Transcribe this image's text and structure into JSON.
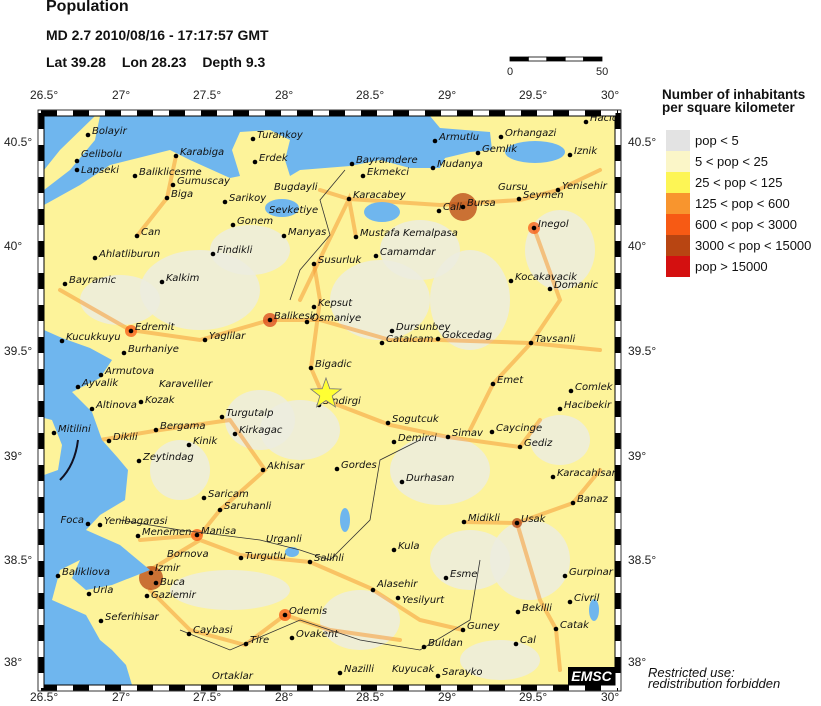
{
  "header": {
    "title": "Population",
    "event": "MD 2.7  2010/08/16 - 17:17:57 GMT",
    "lat": "Lat 39.28",
    "lon": "Lon  28.23",
    "depth": "Depth  9.3"
  },
  "scale_bar": {
    "start": "0",
    "end": "50"
  },
  "axes": {
    "lon_ticks": [
      "26.5°",
      "27°",
      "27.5°",
      "28°",
      "28.5°",
      "29°",
      "29.5°",
      "30°"
    ],
    "lat_ticks": [
      "40.5°",
      "40°",
      "39.5°",
      "39°",
      "38.5°",
      "38°"
    ]
  },
  "legend": {
    "title_line1": "Number of inhabitants",
    "title_line2": "per square kilometer",
    "items": [
      {
        "label": "pop < 5",
        "color": "#e3e3e3"
      },
      {
        "label": "5 < pop < 25",
        "color": "#fbf6c8"
      },
      {
        "label": "25 < pop < 125",
        "color": "#fdf555"
      },
      {
        "label": "125 < pop < 600",
        "color": "#f8952e"
      },
      {
        "label": "600 < pop < 3000",
        "color": "#f75a14"
      },
      {
        "label": "3000 < pop < 15000",
        "color": "#b84512"
      },
      {
        "label": "pop > 15000",
        "color": "#d41010"
      }
    ]
  },
  "epicenter_marker": "yellow-star",
  "colors": {
    "sea": "#6fb6ee",
    "land": "#fdf39a",
    "sparse": "#ececdf",
    "road": "#f59a36",
    "city_dot": "#000000"
  },
  "cities": [
    "Bolayir",
    "Gelibolu",
    "Lapseki",
    "Karabiga",
    "Baliklicesme",
    "Gumuscay",
    "Biga",
    "Turankoy",
    "Erdek",
    "Sarikoy",
    "Bugdayli",
    "Sevketiye",
    "Gonem",
    "Manyas",
    "Can",
    "Ahlatliburun",
    "Findikli",
    "Bayramic",
    "Kalkim",
    "Edremit",
    "Kucukkuyu",
    "Yaglilar",
    "Burhaniye",
    "Armutova",
    "Ayvalik",
    "Karaveliler",
    "Kozak",
    "Altinova",
    "Balikesir",
    "Kepsut",
    "Osmaniye",
    "Susurluk",
    "Bigadic",
    "Sindirgi",
    "Armutlu",
    "Orhangazi",
    "Gemlik",
    "Iznik",
    "Hacic",
    "Bayramdere",
    "Mudanya",
    "Ekmekci",
    "Karacabey",
    "Cali",
    "Bursa",
    "Gursu",
    "Seymen",
    "Yenisehir",
    "Inegol",
    "Mustafa Kemalpasa",
    "Camamdar",
    "Kocakavacik",
    "Domanic",
    "Dursunbey",
    "Catalcam",
    "Gokcedag",
    "Tavsanli",
    "Emet",
    "Comlek",
    "Hacibekir",
    "Mitilini",
    "Dikili",
    "Zeytindag",
    "Bergama",
    "Kinik",
    "Turgutalp",
    "Kirkagac",
    "Akhisar",
    "Saricam",
    "Saruhanli",
    "Foca",
    "Yenibagarasi",
    "Menemen",
    "Manisa",
    "Turgutlu",
    "Urganli",
    "Salihli",
    "Bornova",
    "Izmir",
    "Buca",
    "Gaziemir",
    "Balikliova",
    "Urla",
    "Seferihisar",
    "Caybasi",
    "Odemis",
    "Tire",
    "Ovakent",
    "Ortaklar",
    "Sogutcuk",
    "Simav",
    "Caycinge",
    "Demirci",
    "Gediz",
    "Gordes",
    "Durhasan",
    "Karacahisar",
    "Banaz",
    "Midikli",
    "Usak",
    "Kula",
    "Gurpinar",
    "Esme",
    "Alasehir",
    "Yesilyurt",
    "Civril",
    "Bekilli",
    "Guney",
    "Catak",
    "Cal",
    "Buldan",
    "Nazilli",
    "Kuyucak",
    "Sarayko"
  ],
  "logo": "EMSC",
  "note_line1": "Restricted use:",
  "note_line2": "redistribution forbidden"
}
